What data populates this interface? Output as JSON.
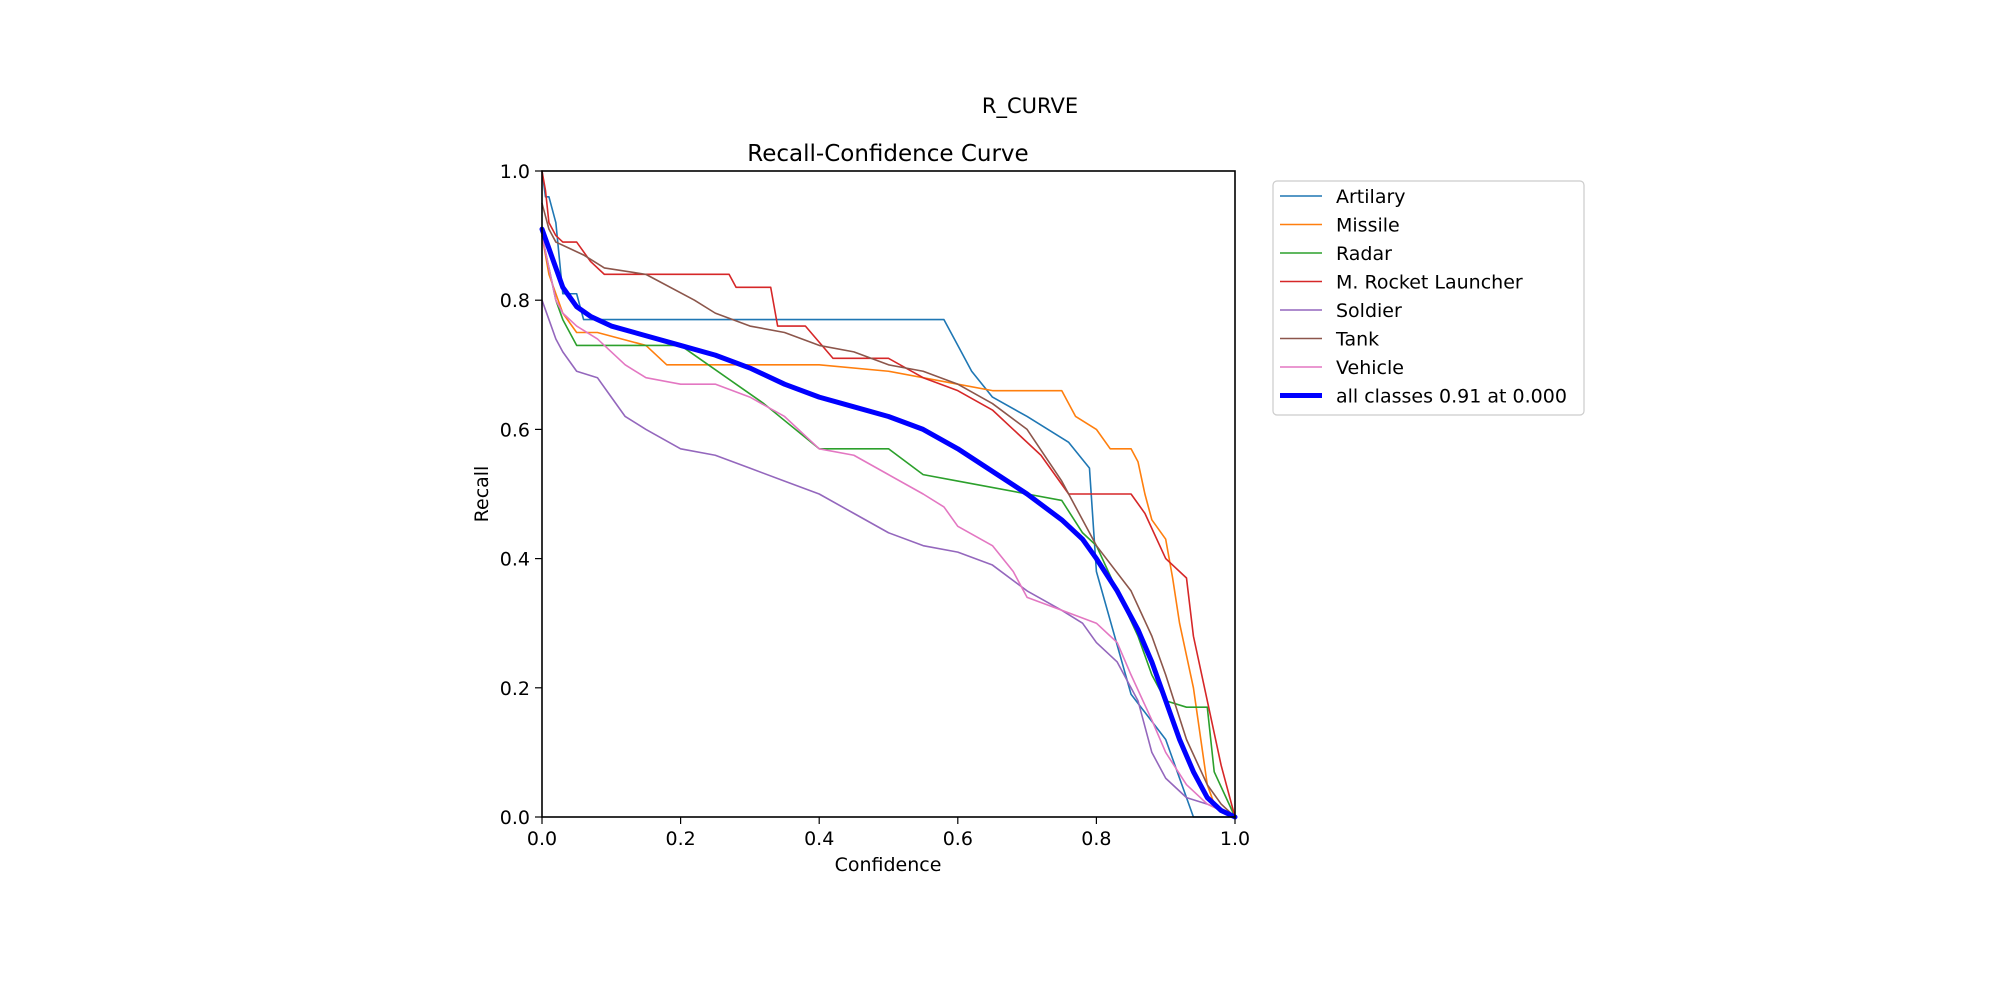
{
  "figure_title": "R_CURVE",
  "chart_data": {
    "type": "line",
    "title": "Recall-Confidence Curve",
    "xlabel": "Confidence",
    "ylabel": "Recall",
    "xlim": [
      0,
      1
    ],
    "ylim": [
      0,
      1
    ],
    "xticks": [
      "0.0",
      "0.2",
      "0.4",
      "0.6",
      "0.8",
      "1.0"
    ],
    "yticks": [
      "0.0",
      "0.2",
      "0.4",
      "0.6",
      "0.8",
      "1.0"
    ],
    "grid": false,
    "legend_position": "outside-upper-right",
    "series": [
      {
        "name": "Artilary",
        "color": "#1f77b4",
        "x": [
          0,
          0.005,
          0.01,
          0.02,
          0.03,
          0.04,
          0.05,
          0.06,
          0.07,
          0.1,
          0.2,
          0.3,
          0.4,
          0.5,
          0.58,
          0.6,
          0.62,
          0.65,
          0.7,
          0.76,
          0.79,
          0.8,
          0.85,
          0.9,
          0.94,
          0.95,
          1.0
        ],
        "y": [
          1.0,
          0.96,
          0.96,
          0.92,
          0.81,
          0.81,
          0.81,
          0.77,
          0.77,
          0.77,
          0.77,
          0.77,
          0.77,
          0.77,
          0.77,
          0.73,
          0.69,
          0.65,
          0.62,
          0.58,
          0.54,
          0.38,
          0.19,
          0.12,
          0.0,
          0.0,
          0.0
        ]
      },
      {
        "name": "Missile",
        "color": "#ff7f0e",
        "x": [
          0,
          0.01,
          0.02,
          0.03,
          0.05,
          0.08,
          0.15,
          0.18,
          0.3,
          0.4,
          0.5,
          0.6,
          0.65,
          0.7,
          0.75,
          0.77,
          0.8,
          0.82,
          0.85,
          0.86,
          0.87,
          0.88,
          0.9,
          0.91,
          0.92,
          0.94,
          0.96,
          0.97,
          1.0
        ],
        "y": [
          0.9,
          0.84,
          0.81,
          0.78,
          0.75,
          0.75,
          0.73,
          0.7,
          0.7,
          0.7,
          0.69,
          0.67,
          0.66,
          0.66,
          0.66,
          0.62,
          0.6,
          0.57,
          0.57,
          0.55,
          0.5,
          0.46,
          0.43,
          0.37,
          0.3,
          0.2,
          0.05,
          0.02,
          0.0
        ]
      },
      {
        "name": "Radar",
        "color": "#2ca02c",
        "x": [
          0,
          0.01,
          0.02,
          0.03,
          0.05,
          0.1,
          0.2,
          0.24,
          0.28,
          0.32,
          0.4,
          0.5,
          0.55,
          0.6,
          0.7,
          0.75,
          0.78,
          0.8,
          0.83,
          0.86,
          0.88,
          0.9,
          0.93,
          0.96,
          0.97,
          1.0
        ],
        "y": [
          0.9,
          0.85,
          0.8,
          0.77,
          0.73,
          0.73,
          0.73,
          0.7,
          0.67,
          0.64,
          0.57,
          0.57,
          0.53,
          0.52,
          0.5,
          0.49,
          0.44,
          0.42,
          0.35,
          0.28,
          0.22,
          0.18,
          0.17,
          0.17,
          0.07,
          0.0
        ]
      },
      {
        "name": "M. Rocket Launcher",
        "color": "#d62728",
        "x": [
          0,
          0.005,
          0.01,
          0.02,
          0.03,
          0.05,
          0.07,
          0.09,
          0.15,
          0.2,
          0.27,
          0.28,
          0.33,
          0.34,
          0.38,
          0.42,
          0.45,
          0.5,
          0.55,
          0.6,
          0.65,
          0.68,
          0.72,
          0.76,
          0.8,
          0.85,
          0.87,
          0.9,
          0.93,
          0.94,
          0.96,
          0.98,
          1.0
        ],
        "y": [
          1.0,
          0.97,
          0.92,
          0.9,
          0.89,
          0.89,
          0.86,
          0.84,
          0.84,
          0.84,
          0.84,
          0.82,
          0.82,
          0.76,
          0.76,
          0.71,
          0.71,
          0.71,
          0.68,
          0.66,
          0.63,
          0.6,
          0.56,
          0.5,
          0.5,
          0.5,
          0.47,
          0.4,
          0.37,
          0.28,
          0.18,
          0.08,
          0.0
        ]
      },
      {
        "name": "Soldier",
        "color": "#9467bd",
        "x": [
          0,
          0.01,
          0.02,
          0.03,
          0.05,
          0.08,
          0.1,
          0.12,
          0.15,
          0.2,
          0.25,
          0.3,
          0.35,
          0.4,
          0.45,
          0.5,
          0.55,
          0.6,
          0.65,
          0.7,
          0.75,
          0.78,
          0.8,
          0.83,
          0.86,
          0.88,
          0.9,
          0.93,
          0.96,
          1.0
        ],
        "y": [
          0.8,
          0.77,
          0.74,
          0.72,
          0.69,
          0.68,
          0.65,
          0.62,
          0.6,
          0.57,
          0.56,
          0.54,
          0.52,
          0.5,
          0.47,
          0.44,
          0.42,
          0.41,
          0.39,
          0.35,
          0.32,
          0.3,
          0.27,
          0.24,
          0.18,
          0.1,
          0.06,
          0.03,
          0.02,
          0.0
        ]
      },
      {
        "name": "Tank",
        "color": "#8c564b",
        "x": [
          0,
          0.005,
          0.01,
          0.02,
          0.04,
          0.06,
          0.09,
          0.15,
          0.22,
          0.25,
          0.3,
          0.35,
          0.4,
          0.45,
          0.5,
          0.55,
          0.6,
          0.65,
          0.7,
          0.75,
          0.8,
          0.85,
          0.88,
          0.9,
          0.93,
          0.96,
          0.98,
          1.0
        ],
        "y": [
          0.95,
          0.93,
          0.91,
          0.89,
          0.88,
          0.87,
          0.85,
          0.84,
          0.8,
          0.78,
          0.76,
          0.75,
          0.73,
          0.72,
          0.7,
          0.69,
          0.67,
          0.64,
          0.6,
          0.52,
          0.42,
          0.35,
          0.28,
          0.22,
          0.12,
          0.05,
          0.02,
          0.0
        ]
      },
      {
        "name": "Vehicle",
        "color": "#e377c2",
        "x": [
          0,
          0.01,
          0.02,
          0.03,
          0.05,
          0.08,
          0.12,
          0.15,
          0.2,
          0.25,
          0.3,
          0.35,
          0.4,
          0.45,
          0.5,
          0.55,
          0.58,
          0.6,
          0.65,
          0.68,
          0.7,
          0.75,
          0.8,
          0.83,
          0.85,
          0.88,
          0.9,
          0.93,
          0.96,
          1.0
        ],
        "y": [
          0.9,
          0.85,
          0.8,
          0.78,
          0.76,
          0.74,
          0.7,
          0.68,
          0.67,
          0.67,
          0.65,
          0.62,
          0.57,
          0.56,
          0.53,
          0.5,
          0.48,
          0.45,
          0.42,
          0.38,
          0.34,
          0.32,
          0.3,
          0.27,
          0.22,
          0.15,
          0.1,
          0.05,
          0.02,
          0.0
        ]
      },
      {
        "name": "all classes 0.91 at 0.000",
        "color": "#0000ff",
        "thick": true,
        "x": [
          0,
          0.01,
          0.02,
          0.03,
          0.05,
          0.07,
          0.1,
          0.15,
          0.2,
          0.25,
          0.3,
          0.35,
          0.4,
          0.45,
          0.5,
          0.55,
          0.6,
          0.65,
          0.7,
          0.75,
          0.78,
          0.8,
          0.83,
          0.86,
          0.88,
          0.9,
          0.92,
          0.94,
          0.96,
          0.98,
          1.0
        ],
        "y": [
          0.91,
          0.88,
          0.85,
          0.82,
          0.79,
          0.775,
          0.76,
          0.745,
          0.73,
          0.715,
          0.695,
          0.67,
          0.65,
          0.635,
          0.62,
          0.6,
          0.57,
          0.535,
          0.5,
          0.46,
          0.43,
          0.4,
          0.35,
          0.29,
          0.24,
          0.18,
          0.12,
          0.07,
          0.03,
          0.01,
          0.0
        ]
      }
    ]
  }
}
